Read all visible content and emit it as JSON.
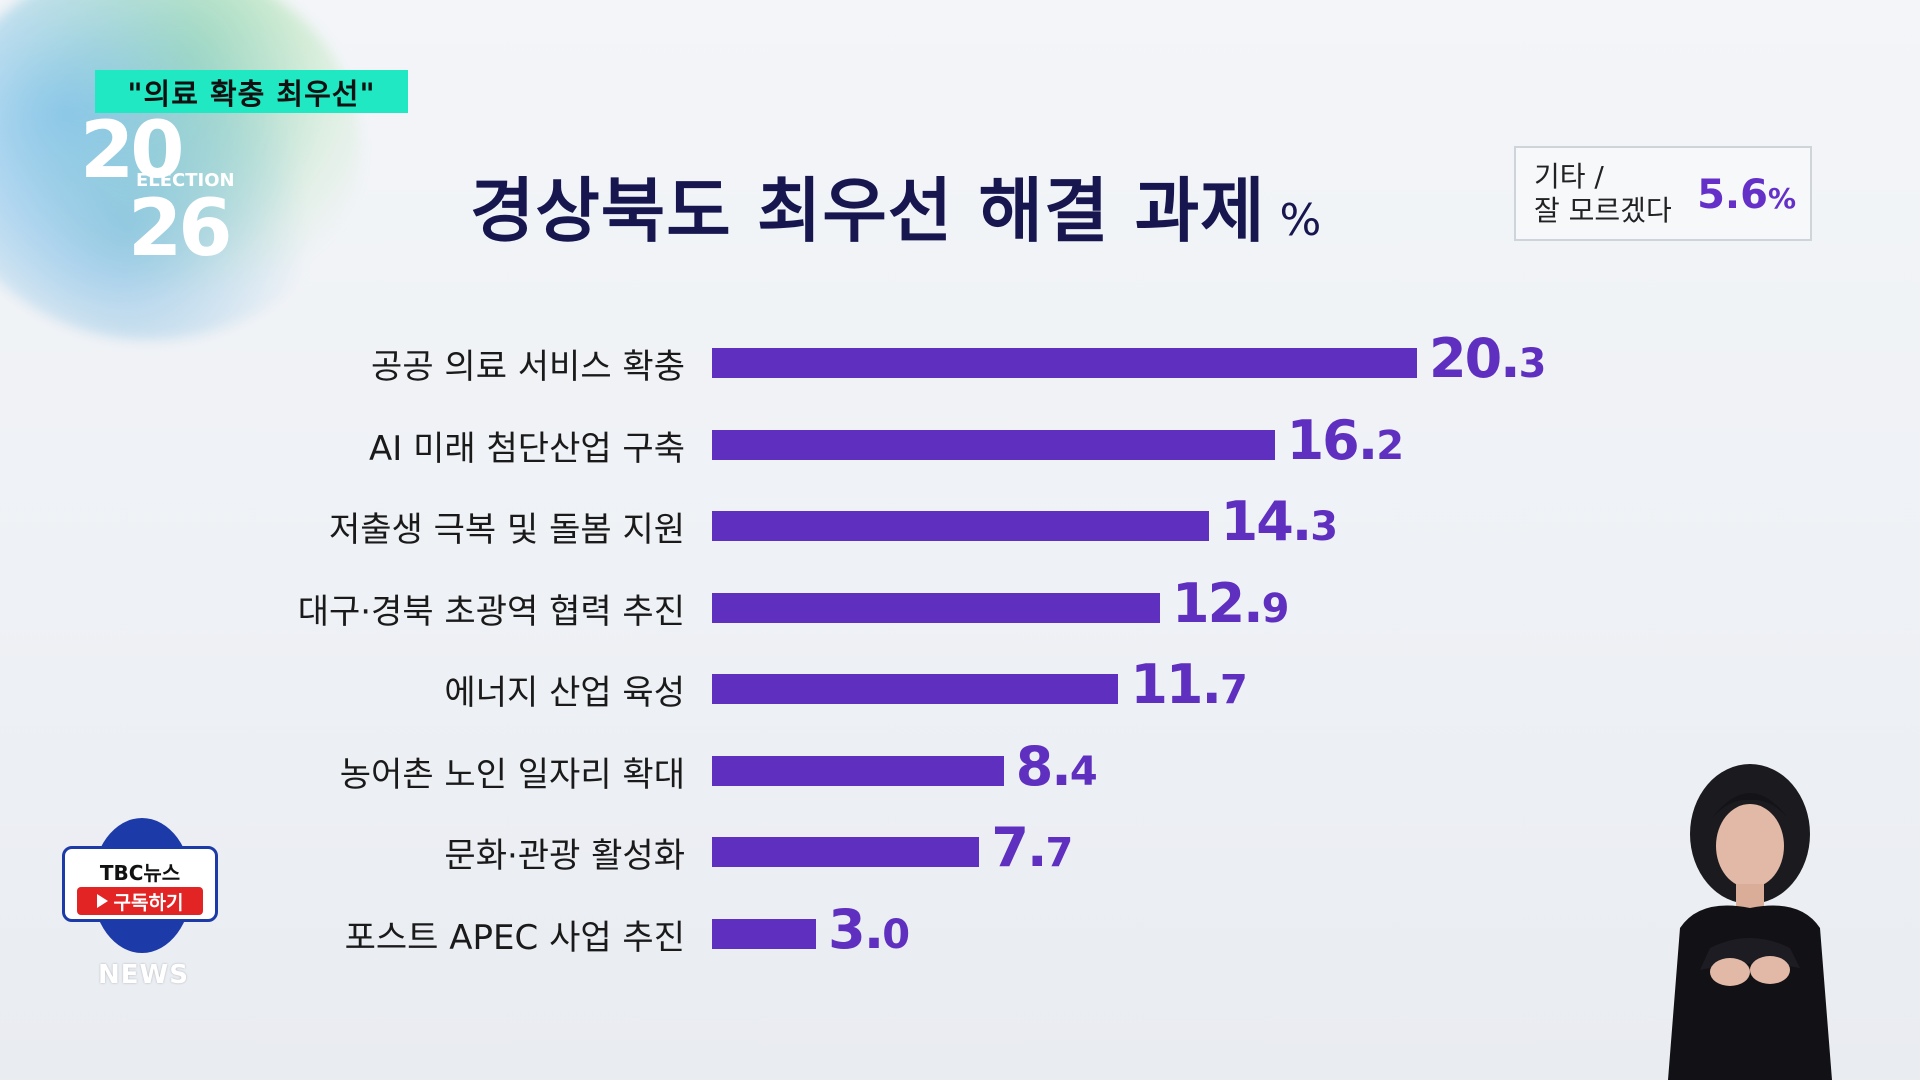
{
  "tag": "\"의료 확충 최우선\"",
  "logo": {
    "top": "20",
    "middle": "ELECTION",
    "bottom": "26"
  },
  "chart_data": {
    "type": "bar",
    "orientation": "horizontal",
    "title": "경상북도 최우선 해결 과제",
    "unit": "%",
    "categories": [
      "공공 의료 서비스 확충",
      "AI 미래 첨단산업 구축",
      "저출생 극복 및 돌봄 지원",
      "대구·경북 초광역 협력 추진",
      "에너지 산업 육성",
      "농어촌 노인 일자리 확대",
      "문화·관광 활성화",
      "포스트 APEC 사업 추진"
    ],
    "values": [
      20.3,
      16.2,
      14.3,
      12.9,
      11.7,
      8.4,
      7.7,
      3.0
    ],
    "value_labels": [
      "20.3",
      "16.2",
      "14.3",
      "12.9",
      "11.7",
      "8.4",
      "7.7",
      "3.0"
    ],
    "bar_color": "#5f2fbf",
    "other": {
      "label_line1": "기타 /",
      "label_line2": "잘 모르겠다",
      "value": "5.6",
      "unit": "%"
    }
  },
  "channel": {
    "name": "TBC뉴스",
    "subscribe": "구독하기",
    "news": "NEWS"
  },
  "colors": {
    "title": "#17164f",
    "accent": "#5f2fbf",
    "tag_bg": "#20e8c2"
  }
}
